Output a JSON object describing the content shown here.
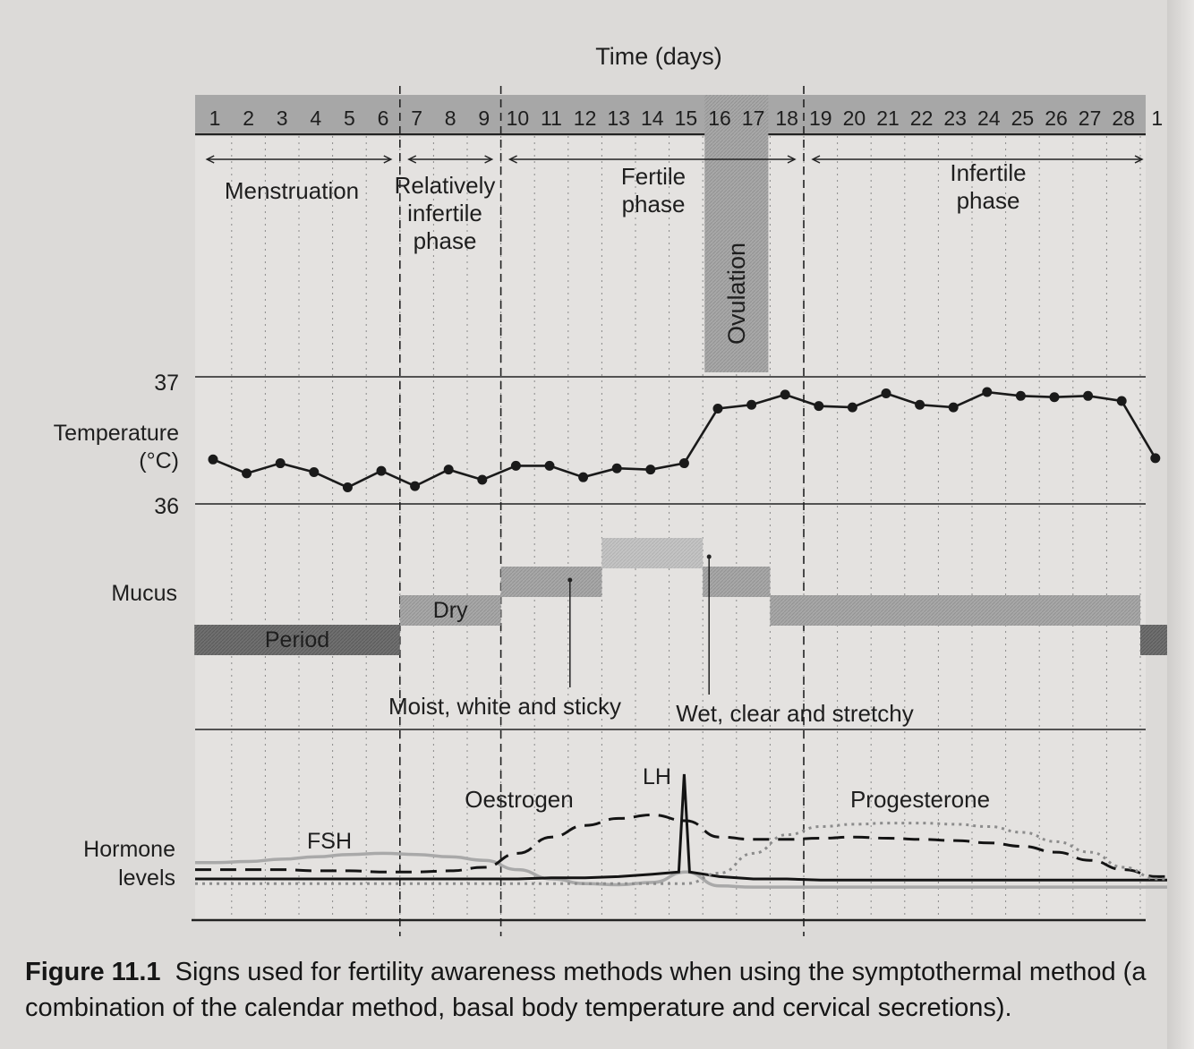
{
  "chart_data": {
    "type": "line",
    "title": "Time (days)",
    "days": [
      "1",
      "2",
      "3",
      "4",
      "5",
      "6",
      "7",
      "8",
      "9",
      "10",
      "11",
      "12",
      "13",
      "14",
      "15",
      "16",
      "17",
      "18",
      "19",
      "20",
      "21",
      "22",
      "23",
      "24",
      "25",
      "26",
      "27",
      "28",
      "1"
    ],
    "phases": [
      {
        "name": "Menstruation",
        "lines": [
          "Menstruation"
        ],
        "start_day": 1,
        "end_day": 6
      },
      {
        "name": "Relatively infertile phase",
        "lines": [
          "Relatively",
          "infertile",
          "phase"
        ],
        "start_day": 7,
        "end_day": 9
      },
      {
        "name": "Fertile phase",
        "lines": [
          "Fertile",
          "phase"
        ],
        "start_day": 10,
        "end_day": 18
      },
      {
        "name": "Infertile phase",
        "lines": [
          "Infertile",
          "phase"
        ],
        "start_day": 19,
        "end_day": 28
      }
    ],
    "ovulation": {
      "label": "Ovulation",
      "start_day": 16,
      "end_day": 17
    },
    "temperature": {
      "label_lines": [
        "Temperature",
        "(°C)"
      ],
      "ylim": [
        36,
        37
      ],
      "tick_labels": [
        "37",
        "36"
      ],
      "values": [
        36.35,
        36.24,
        36.32,
        36.25,
        36.13,
        36.26,
        36.14,
        36.27,
        36.19,
        36.3,
        36.3,
        36.21,
        36.28,
        36.27,
        36.32,
        36.75,
        36.78,
        36.86,
        36.77,
        36.76,
        36.87,
        36.78,
        36.76,
        36.88,
        36.85,
        36.84,
        36.85,
        36.81,
        36.36
      ]
    },
    "mucus": {
      "label": "Mucus",
      "segments": [
        {
          "label": "Period",
          "start_day": 1,
          "end_day": 6,
          "level": 1
        },
        {
          "label": "Dry",
          "start_day": 7,
          "end_day": 9,
          "level": 2
        },
        {
          "label": "",
          "start_day": 10,
          "end_day": 12,
          "level": 3
        },
        {
          "label": "",
          "start_day": 13,
          "end_day": 15,
          "level": 4
        },
        {
          "label": "",
          "start_day": 16,
          "end_day": 17,
          "level": 3
        },
        {
          "label": "",
          "start_day": 18,
          "end_day": 28,
          "level": 2
        },
        {
          "label": "",
          "start_day": 29,
          "end_day": 29,
          "level": 1
        }
      ],
      "annotations": [
        {
          "text": "Moist, white and sticky",
          "day": 11.5
        },
        {
          "text": "Wet, clear and stretchy",
          "day": 15.5
        }
      ]
    },
    "hormones": {
      "label_lines": [
        "Hormone",
        "levels"
      ],
      "series": [
        {
          "name": "FSH",
          "values": [
            0.24,
            0.25,
            0.27,
            0.29,
            0.31,
            0.32,
            0.31,
            0.29,
            0.26,
            0.18,
            0.1,
            0.06,
            0.05,
            0.07,
            0.16,
            0.04,
            0.03,
            0.03,
            0.03,
            0.03,
            0.03,
            0.03,
            0.03,
            0.03,
            0.03,
            0.03,
            0.03,
            0.03,
            0.03
          ]
        },
        {
          "name": "LH",
          "values": [
            0.1,
            0.1,
            0.1,
            0.1,
            0.1,
            0.1,
            0.1,
            0.1,
            0.1,
            0.1,
            0.11,
            0.11,
            0.12,
            0.14,
            1.0,
            0.12,
            0.1,
            0.1,
            0.09,
            0.09,
            0.09,
            0.09,
            0.09,
            0.09,
            0.09,
            0.09,
            0.09,
            0.09,
            0.09
          ]
        },
        {
          "name": "Oestrogen",
          "values": [
            0.18,
            0.18,
            0.18,
            0.17,
            0.17,
            0.16,
            0.16,
            0.17,
            0.2,
            0.32,
            0.46,
            0.56,
            0.62,
            0.65,
            0.6,
            0.46,
            0.44,
            0.44,
            0.45,
            0.46,
            0.45,
            0.44,
            0.43,
            0.41,
            0.38,
            0.33,
            0.26,
            0.18,
            0.12
          ]
        },
        {
          "name": "Progesterone",
          "values": [
            0.06,
            0.06,
            0.06,
            0.06,
            0.06,
            0.06,
            0.06,
            0.06,
            0.06,
            0.06,
            0.06,
            0.06,
            0.06,
            0.06,
            0.06,
            0.15,
            0.32,
            0.48,
            0.55,
            0.57,
            0.58,
            0.58,
            0.57,
            0.55,
            0.5,
            0.42,
            0.33,
            0.2,
            0.1
          ]
        }
      ],
      "labels": [
        "FSH",
        "LH",
        "Oestrogen",
        "Progesterone"
      ]
    }
  },
  "caption": {
    "number": "Figure 11.1",
    "text": "Signs used for fertility awareness methods when using the symptothermal method (a combination of the calendar method, basal body temperature and cervical secretions)."
  }
}
